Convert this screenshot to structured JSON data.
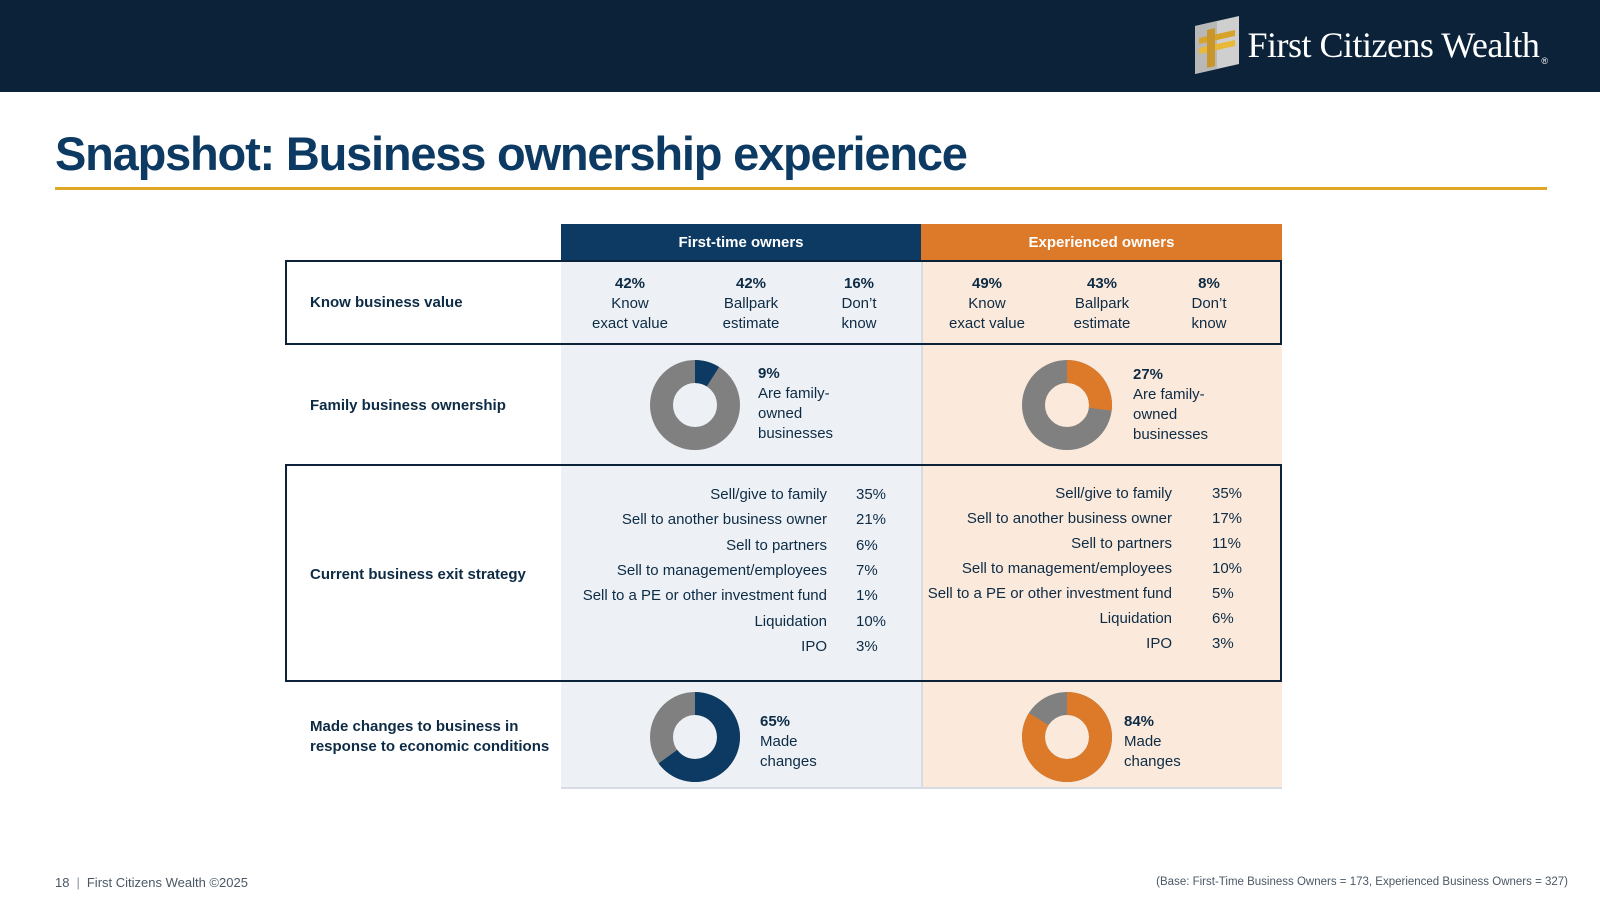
{
  "brand": {
    "logo_text": "First Citizens Wealth",
    "logo_reg": "®",
    "colors": {
      "navy": "#0b2239",
      "blue": "#0d3a63",
      "orange": "#dc7a2a",
      "gold": "#e0a626",
      "gray": "#808080"
    }
  },
  "title": "Snapshot: Business ownership experience",
  "headers": {
    "first": "First-time owners",
    "experienced": "Experienced owners"
  },
  "rows": {
    "know_value": {
      "label": "Know business value",
      "first": [
        {
          "pct": "42%",
          "line1": "Know",
          "line2": "exact value"
        },
        {
          "pct": "42%",
          "line1": "Ballpark",
          "line2": "estimate"
        },
        {
          "pct": "16%",
          "line1": "Don’t",
          "line2": "know"
        }
      ],
      "experienced": [
        {
          "pct": "49%",
          "line1": "Know",
          "line2": "exact value"
        },
        {
          "pct": "43%",
          "line1": "Ballpark",
          "line2": "estimate"
        },
        {
          "pct": "8%",
          "line1": "Don’t",
          "line2": "know"
        }
      ]
    },
    "family": {
      "label": "Family business ownership",
      "first": {
        "pct": "9%",
        "value": 9,
        "line1": "Are family-",
        "line2": "owned",
        "line3": "businesses"
      },
      "experienced": {
        "pct": "27%",
        "value": 27,
        "line1": "Are family-",
        "line2": "owned",
        "line3": "businesses"
      }
    },
    "exit": {
      "label": "Current business exit strategy",
      "first": [
        {
          "label": "Sell/give to family",
          "pct": "35%"
        },
        {
          "label": "Sell to another business owner",
          "pct": "21%"
        },
        {
          "label": "Sell to partners",
          "pct": "6%"
        },
        {
          "label": "Sell to management/employees",
          "pct": "7%"
        },
        {
          "label": "Sell to a PE or other investment fund",
          "pct": "1%"
        },
        {
          "label": "Liquidation",
          "pct": "10%"
        },
        {
          "label": "IPO",
          "pct": "3%"
        }
      ],
      "experienced": [
        {
          "label": "Sell/give to family",
          "pct": "35%"
        },
        {
          "label": "Sell to another business owner",
          "pct": "17%"
        },
        {
          "label": "Sell to partners",
          "pct": "11%"
        },
        {
          "label": "Sell to management/employees",
          "pct": "10%"
        },
        {
          "label": "Sell to a PE or other investment fund",
          "pct": "5%"
        },
        {
          "label": "Liquidation",
          "pct": "6%"
        },
        {
          "label": "IPO",
          "pct": "3%"
        }
      ]
    },
    "changes": {
      "label_line1": "Made changes to business in",
      "label_line2": "response to economic conditions",
      "first": {
        "pct": "65%",
        "value": 65,
        "line1": "Made",
        "line2": "changes"
      },
      "experienced": {
        "pct": "84%",
        "value": 84,
        "line1": "Made",
        "line2": "changes"
      }
    }
  },
  "footer": {
    "page": "18",
    "sep": "|",
    "copyright": "First Citizens Wealth ©2025",
    "base_note": "(Base: First-Time Business Owners = 173, Experienced Business Owners = 327)"
  }
}
